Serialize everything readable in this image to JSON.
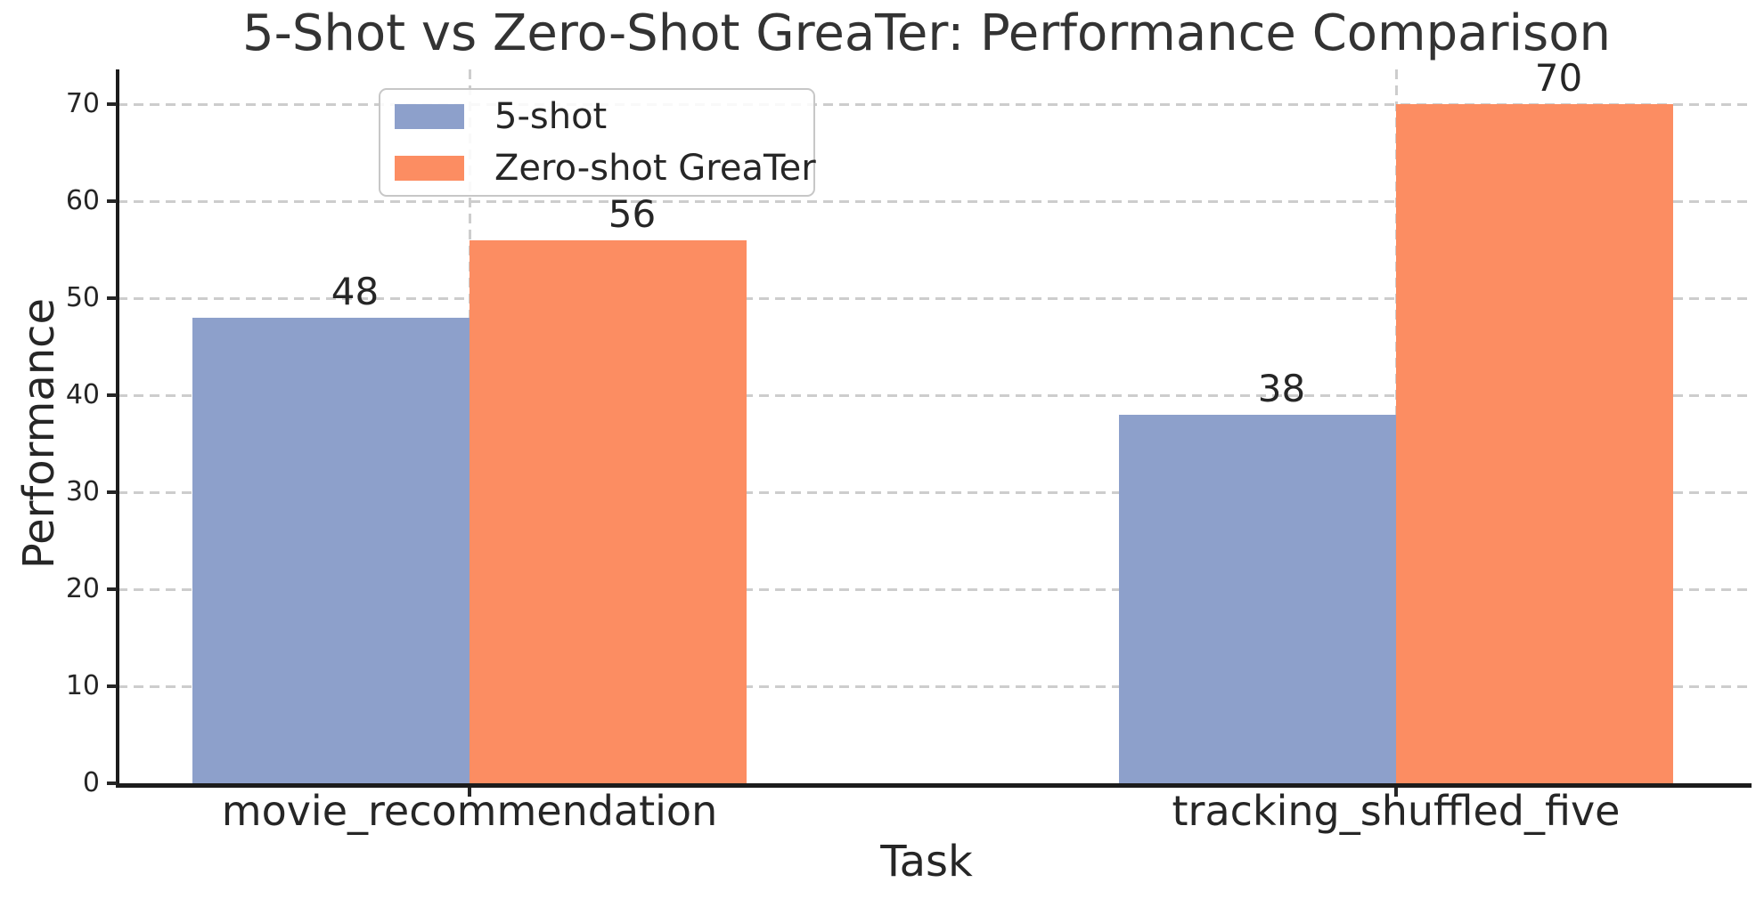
{
  "chart_data": {
    "type": "bar",
    "title": "5-Shot vs Zero-Shot GreaTer: Performance Comparison",
    "xlabel": "Task",
    "ylabel": "Performance",
    "categories": [
      "movie_recommendation",
      "tracking_shuffled_five"
    ],
    "series": [
      {
        "name": "5-shot",
        "color": "#8da0cb",
        "values": [
          48,
          38
        ]
      },
      {
        "name": "Zero-shot GreaTer",
        "color": "#fc8d62",
        "values": [
          56,
          70
        ]
      }
    ],
    "ylim": [
      0,
      73
    ],
    "yticks": [
      0,
      10,
      20,
      30,
      40,
      50,
      60,
      70
    ],
    "grid": true,
    "grid_style": "dashed",
    "grid_axes": "both",
    "legend_position": "upper left",
    "bar_value_labels_shown": true
  },
  "colors": {
    "bar_5shot": "#8da0cb",
    "bar_zeroshot_greater": "#fc8d62",
    "grid": "#cdcdcd",
    "spine": "#1c1c1c",
    "text": "#262626",
    "title_text": "#333333",
    "legend_border": "#c7c7c7",
    "background": "#ffffff"
  }
}
